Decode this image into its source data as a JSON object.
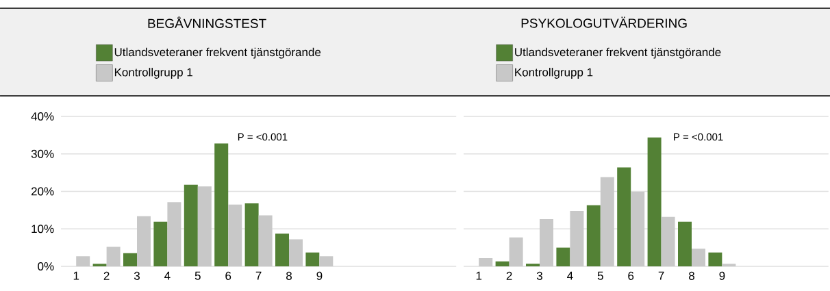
{
  "chart_data": [
    {
      "type": "bar",
      "title": "BEGÅVNINGSTEST",
      "categories": [
        "1",
        "2",
        "3",
        "4",
        "5",
        "6",
        "7",
        "8",
        "9",
        null,
        null,
        null,
        null
      ],
      "series": [
        {
          "name": "Utlandsveteraner frekvent tjänstgörande",
          "color": "#538135",
          "values": [
            0,
            0.7,
            3.5,
            11.9,
            21.8,
            32.8,
            16.8,
            8.7,
            3.7,
            null,
            null,
            null,
            null
          ]
        },
        {
          "name": "Kontrollgrupp 1",
          "color": "#c8c8c8",
          "values": [
            2.7,
            5.2,
            13.4,
            17.1,
            21.3,
            16.5,
            13.6,
            7.2,
            2.7,
            null,
            null,
            null,
            null
          ]
        }
      ],
      "ylim": [
        0,
        40
      ],
      "yticks": [
        {
          "value": 0,
          "label": "0%"
        },
        {
          "value": 10,
          "label": "10%"
        },
        {
          "value": 20,
          "label": "20%"
        },
        {
          "value": 30,
          "label": "30%"
        },
        {
          "value": 40,
          "label": "40%"
        }
      ],
      "grid": "y",
      "legend": "top",
      "annotations": [
        "P = <0.001"
      ]
    },
    {
      "type": "bar",
      "title": "PSYKOLOGUTVÄRDERING",
      "categories": [
        "1",
        "2",
        "3",
        "4",
        "5",
        "6",
        "7",
        "8",
        "9",
        null,
        null,
        null
      ],
      "series": [
        {
          "name": "Utlandsveteraner frekvent tjänstgörande",
          "color": "#538135",
          "values": [
            0,
            1.3,
            0.7,
            5.0,
            16.3,
            26.4,
            34.4,
            11.9,
            3.7,
            null,
            null,
            null
          ]
        },
        {
          "name": "Kontrollgrupp 1",
          "color": "#c8c8c8",
          "values": [
            2.2,
            7.7,
            12.6,
            14.8,
            23.8,
            19.9,
            13.2,
            4.7,
            0.7,
            null,
            null,
            null
          ]
        }
      ],
      "ylim": [
        0,
        40
      ],
      "yticks": [
        {
          "value": 0,
          "label": null
        },
        {
          "value": 10,
          "label": null
        },
        {
          "value": 20,
          "label": null
        },
        {
          "value": 30,
          "label": null
        },
        {
          "value": 40,
          "label": null
        }
      ],
      "grid": "y",
      "legend": "top",
      "tick_labels": "x",
      "annotations": [
        "P = <0.001"
      ]
    }
  ]
}
